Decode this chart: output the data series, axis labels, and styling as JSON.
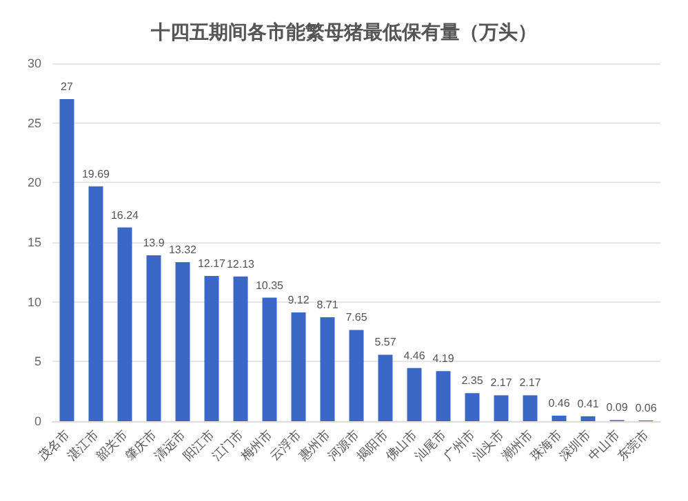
{
  "chart_data": {
    "type": "bar",
    "title": "十四五期间各市能繁母猪最低保有量（万头）",
    "categories": [
      "茂名市",
      "湛江市",
      "韶关市",
      "肇庆市",
      "清远市",
      "阳江市",
      "江门市",
      "梅州市",
      "云浮市",
      "惠州市",
      "河源市",
      "揭阳市",
      "佛山市",
      "汕尾市",
      "广州市",
      "汕头市",
      "潮州市",
      "珠海市",
      "深圳市",
      "中山市",
      "东莞市"
    ],
    "values": [
      27,
      19.69,
      16.24,
      13.9,
      13.32,
      12.17,
      12.13,
      10.35,
      9.12,
      8.71,
      7.65,
      5.57,
      4.46,
      4.19,
      2.35,
      2.17,
      2.17,
      0.46,
      0.41,
      0.09,
      0.06
    ],
    "color": "#3b67c6",
    "ylim": [
      0,
      30
    ],
    "yticks": [
      0,
      5,
      10,
      15,
      20,
      25,
      30
    ],
    "grid": "y",
    "data_labels": true
  }
}
